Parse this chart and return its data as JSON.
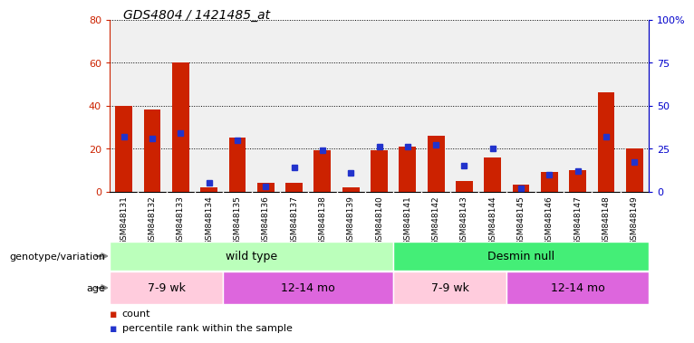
{
  "title": "GDS4804 / 1421485_at",
  "samples": [
    "GSM848131",
    "GSM848132",
    "GSM848133",
    "GSM848134",
    "GSM848135",
    "GSM848136",
    "GSM848137",
    "GSM848138",
    "GSM848139",
    "GSM848140",
    "GSM848141",
    "GSM848142",
    "GSM848143",
    "GSM848144",
    "GSM848145",
    "GSM848146",
    "GSM848147",
    "GSM848148",
    "GSM848149"
  ],
  "counts": [
    40,
    38,
    60,
    2,
    25,
    4,
    4,
    19,
    2,
    19,
    21,
    26,
    5,
    16,
    3,
    9,
    10,
    46,
    20
  ],
  "percentiles": [
    32,
    31,
    34,
    5,
    30,
    3,
    14,
    24,
    11,
    26,
    26,
    27,
    15,
    25,
    2,
    10,
    12,
    32,
    17
  ],
  "ylim_left": [
    0,
    80
  ],
  "ylim_right": [
    0,
    100
  ],
  "yticks_left": [
    0,
    20,
    40,
    60,
    80
  ],
  "yticks_right": [
    0,
    25,
    50,
    75,
    100
  ],
  "yticklabels_right": [
    "0",
    "25",
    "50",
    "75",
    "100%"
  ],
  "bar_color": "#cc2200",
  "square_color": "#2233cc",
  "bg_color": "#ffffff",
  "plot_bg": "#f0f0f0",
  "genotype_groups": [
    {
      "label": "wild type",
      "start": 0,
      "end": 9,
      "color": "#bbffbb"
    },
    {
      "label": "Desmin null",
      "start": 10,
      "end": 18,
      "color": "#44ee77"
    }
  ],
  "age_groups": [
    {
      "label": "7-9 wk",
      "start": 0,
      "end": 3,
      "color": "#ffccdd"
    },
    {
      "label": "12-14 mo",
      "start": 4,
      "end": 9,
      "color": "#dd66dd"
    },
    {
      "label": "7-9 wk",
      "start": 10,
      "end": 13,
      "color": "#ffccdd"
    },
    {
      "label": "12-14 mo",
      "start": 14,
      "end": 18,
      "color": "#dd66dd"
    }
  ],
  "geno_label": "genotype/variation",
  "age_label": "age",
  "legend_count": "count",
  "legend_pct": "percentile rank within the sample"
}
